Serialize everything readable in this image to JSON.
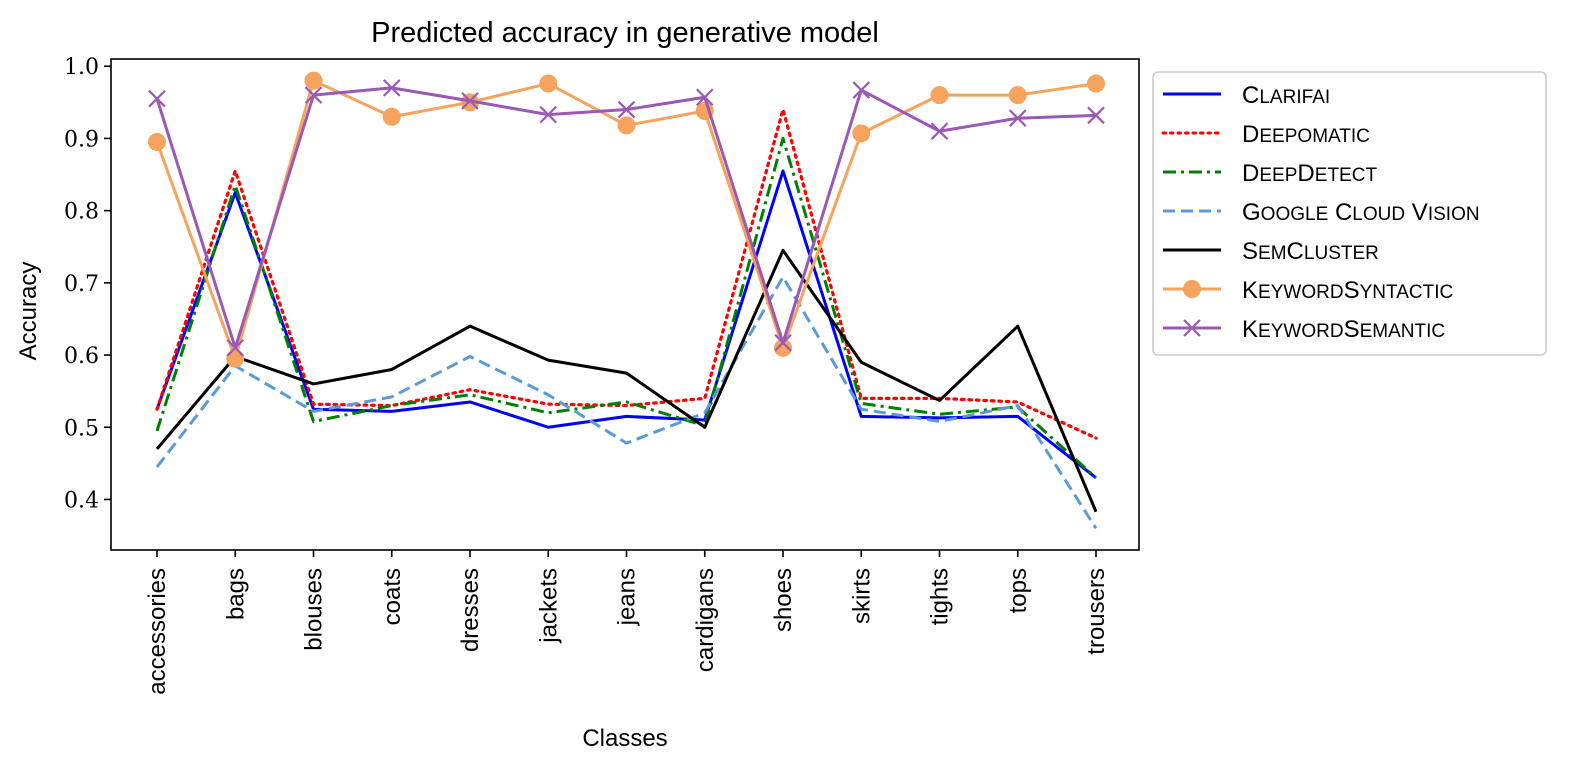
{
  "chart_data": {
    "type": "line",
    "title": "Predicted accuracy in generative model",
    "xlabel": "Classes",
    "ylabel": "Accuracy",
    "ylim": [
      0.33,
      1.01
    ],
    "yticks": [
      0.4,
      0.5,
      0.6,
      0.7,
      0.8,
      0.9,
      1.0
    ],
    "ytick_labels": [
      "0.4",
      "0.5",
      "0.6",
      "0.7",
      "0.8",
      "0.9",
      "1.0"
    ],
    "grid": false,
    "legend_position": "outside-top-right",
    "categories": [
      "accessories",
      "bags",
      "blouses",
      "coats",
      "dresses",
      "jackets",
      "jeans",
      "cardigans",
      "shoes",
      "skirts",
      "tights",
      "tops",
      "trousers"
    ],
    "series": [
      {
        "name": "Clarifai",
        "color": "#0000ff",
        "style": "solid",
        "marker": "none",
        "values": [
          0.525,
          0.825,
          0.525,
          0.522,
          0.535,
          0.5,
          0.515,
          0.51,
          0.855,
          0.515,
          0.513,
          0.515,
          0.43
        ]
      },
      {
        "name": "Deepomatic",
        "color": "#ff0000",
        "style": "dotted",
        "marker": "none",
        "values": [
          0.525,
          0.855,
          0.532,
          0.53,
          0.552,
          0.532,
          0.53,
          0.54,
          0.94,
          0.54,
          0.54,
          0.535,
          0.485
        ]
      },
      {
        "name": "DeepDetect",
        "color": "#008000",
        "style": "dashdot",
        "marker": "none",
        "values": [
          0.495,
          0.835,
          0.508,
          0.53,
          0.545,
          0.52,
          0.535,
          0.502,
          0.9,
          0.533,
          0.518,
          0.528,
          0.43
        ]
      },
      {
        "name": "Google Cloud Vision",
        "color": "#5b9bd5",
        "style": "dashed",
        "marker": "none",
        "values": [
          0.445,
          0.585,
          0.522,
          0.542,
          0.598,
          0.545,
          0.478,
          0.52,
          0.708,
          0.525,
          0.508,
          0.53,
          0.36
        ]
      },
      {
        "name": "SemCluster",
        "color": "#000000",
        "style": "solid",
        "marker": "none",
        "values": [
          0.47,
          0.598,
          0.56,
          0.58,
          0.64,
          0.593,
          0.575,
          0.5,
          0.745,
          0.59,
          0.537,
          0.64,
          0.383
        ]
      },
      {
        "name": "KeywordSyntactic",
        "color": "#f5a35d",
        "style": "solid",
        "marker": "circle",
        "values": [
          0.895,
          0.595,
          0.98,
          0.93,
          0.95,
          0.976,
          0.918,
          0.938,
          0.61,
          0.907,
          0.96,
          0.96,
          0.976
        ]
      },
      {
        "name": "KeywordSemantic",
        "color": "#9b59b6",
        "style": "solid",
        "marker": "x",
        "values": [
          0.955,
          0.61,
          0.96,
          0.97,
          0.952,
          0.933,
          0.94,
          0.957,
          0.617,
          0.967,
          0.91,
          0.928,
          0.932
        ]
      }
    ]
  }
}
